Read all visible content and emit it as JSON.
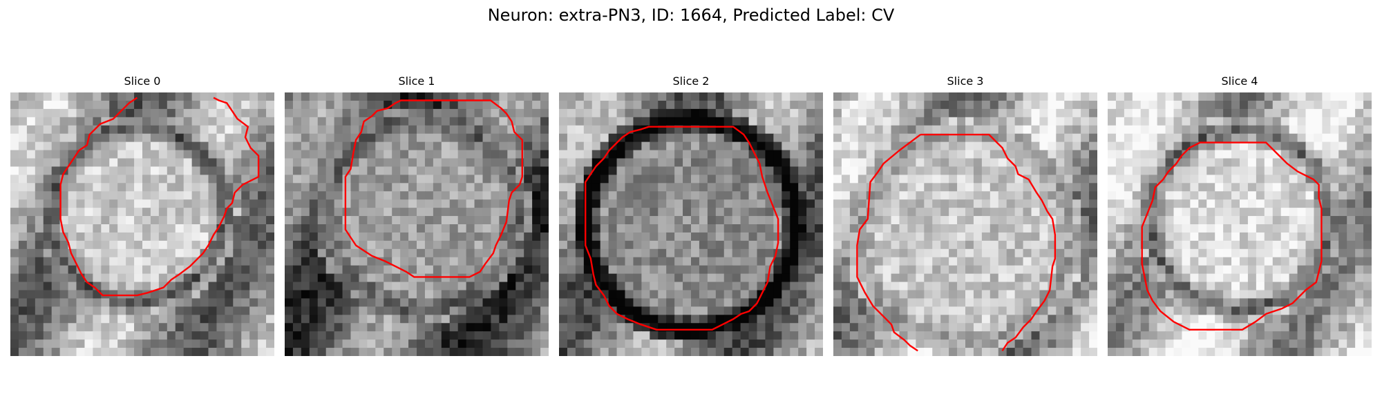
{
  "figure": {
    "title": "Neuron: extra-PN3, ID: 1664, Predicted Label: CV"
  },
  "slices": [
    {
      "title": "Slice 0"
    },
    {
      "title": "Slice 1"
    },
    {
      "title": "Slice 2"
    },
    {
      "title": "Slice 3"
    },
    {
      "title": "Slice 4"
    }
  ],
  "colors": {
    "contour": "#ff0000",
    "background": "#ffffff"
  }
}
